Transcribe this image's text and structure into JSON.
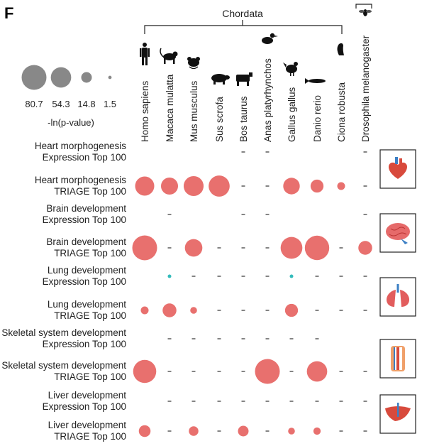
{
  "panel_label": "F",
  "clade_label": "Chordata",
  "size_legend": {
    "values": [
      80.7,
      54.3,
      14.8,
      1.5
    ],
    "labels": [
      "80.7",
      "54.3",
      "14.8",
      "1.5"
    ],
    "title": "-ln(p-value)"
  },
  "colors": {
    "triage": "#e8706e",
    "expression": "#33bbbb",
    "dash": "#333333",
    "mark_gray": "#888888"
  },
  "icons": [
    "human-icon",
    "monkey-icon",
    "mouse-icon",
    "pig-icon",
    "cow-icon",
    "duck-icon",
    "chicken-icon",
    "fish-icon",
    "sea-squirt-icon",
    "fly-icon"
  ],
  "organ_icons": [
    "heart-icon",
    "brain-icon",
    "lungs-icon",
    "bone-icon",
    "liver-icon"
  ],
  "chart_data": {
    "type": "scatter",
    "encoding": "bubble-matrix",
    "columns": [
      "Homo sapiens",
      "Macaca mulatta",
      "Mus musculus",
      "Sus scrofa",
      "Bos taurus",
      "Anas platyrhynchos",
      "Gallus gallus",
      "Danio rerio",
      "Ciona robusta",
      "Drosophila melanogaster"
    ],
    "rows": [
      {
        "line1": "Heart morphogenesis",
        "line2": "Expression Top 100",
        "group": "expression",
        "values": [
          null,
          null,
          null,
          null,
          0,
          0,
          null,
          null,
          null,
          0
        ]
      },
      {
        "line1": "Heart morphogenesis",
        "line2": "TRIAGE Top 100",
        "group": "triage",
        "values": [
          48,
          38,
          52,
          58,
          0,
          0,
          36,
          22,
          8,
          0
        ]
      },
      {
        "line1": "Brain development",
        "line2": "Expression Top 100",
        "group": "expression",
        "values": [
          null,
          0,
          null,
          null,
          0,
          0,
          null,
          null,
          null,
          0
        ]
      },
      {
        "line1": "Brain development",
        "line2": "TRIAGE Top 100",
        "group": "triage",
        "values": [
          80.7,
          0,
          40,
          0,
          0,
          0,
          62,
          78,
          0,
          25
        ]
      },
      {
        "line1": "Lung development",
        "line2": "Expression Top 100",
        "group": "expression",
        "values": [
          null,
          1.5,
          0,
          0,
          0,
          0,
          1.5,
          0,
          0,
          0
        ]
      },
      {
        "line1": "Lung development",
        "line2": "TRIAGE Top 100",
        "group": "triage",
        "values": [
          8,
          25,
          6,
          0,
          0,
          0,
          22,
          0,
          0,
          0
        ]
      },
      {
        "line1": "Skeletal system development",
        "line2": "Expression Top 100",
        "group": "expression",
        "values": [
          null,
          0,
          0,
          0,
          0,
          0,
          0,
          0,
          null,
          null
        ]
      },
      {
        "line1": "Skeletal system development",
        "line2": "TRIAGE Top 100",
        "group": "triage",
        "values": [
          70,
          0,
          0,
          0,
          0,
          80.7,
          0,
          54.3,
          0,
          0
        ]
      },
      {
        "line1": "Liver development",
        "line2": "Expression Top 100",
        "group": "expression",
        "values": [
          null,
          0,
          0,
          0,
          0,
          0,
          0,
          0,
          0,
          0
        ]
      },
      {
        "line1": "Liver development",
        "line2": "TRIAGE Top 100",
        "group": "triage",
        "values": [
          18,
          0,
          12,
          0,
          14.8,
          0,
          6,
          7,
          0,
          0
        ]
      }
    ]
  }
}
